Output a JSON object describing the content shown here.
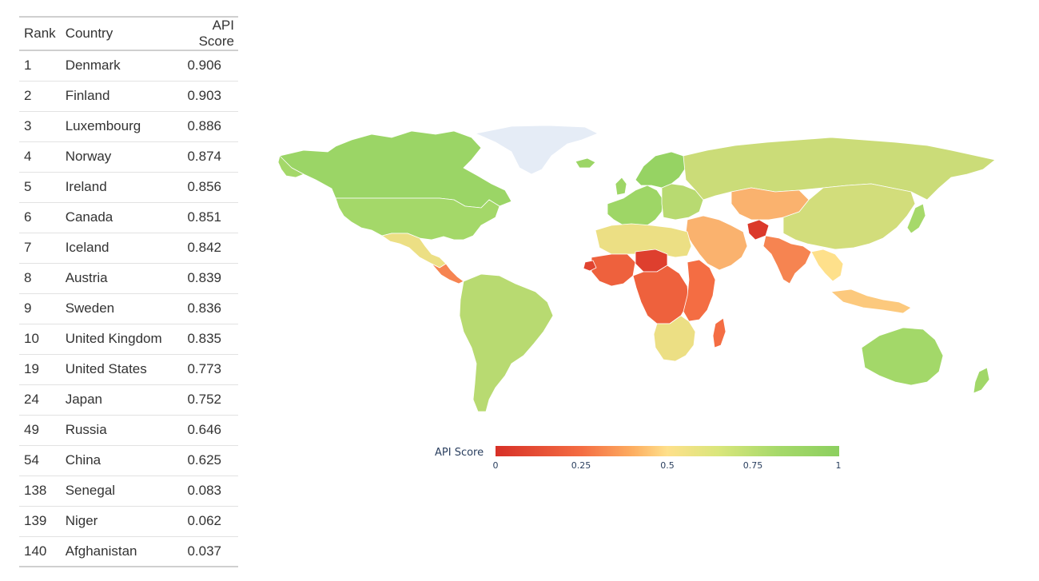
{
  "table": {
    "headers": {
      "rank": "Rank",
      "country": "Country",
      "score": "API Score"
    },
    "rows": [
      {
        "rank": "1",
        "country": "Denmark",
        "score": "0.906"
      },
      {
        "rank": "2",
        "country": "Finland",
        "score": "0.903"
      },
      {
        "rank": "3",
        "country": "Luxembourg",
        "score": "0.886"
      },
      {
        "rank": "4",
        "country": "Norway",
        "score": "0.874"
      },
      {
        "rank": "5",
        "country": "Ireland",
        "score": "0.856"
      },
      {
        "rank": "6",
        "country": "Canada",
        "score": "0.851"
      },
      {
        "rank": "7",
        "country": "Iceland",
        "score": "0.842"
      },
      {
        "rank": "8",
        "country": "Austria",
        "score": "0.839"
      },
      {
        "rank": "9",
        "country": "Sweden",
        "score": "0.836"
      },
      {
        "rank": "10",
        "country": "United Kingdom",
        "score": "0.835"
      },
      {
        "rank": "19",
        "country": "United States",
        "score": "0.773"
      },
      {
        "rank": "24",
        "country": "Japan",
        "score": "0.752"
      },
      {
        "rank": "49",
        "country": "Russia",
        "score": "0.646"
      },
      {
        "rank": "54",
        "country": "China",
        "score": "0.625"
      },
      {
        "rank": "138",
        "country": "Senegal",
        "score": "0.083"
      },
      {
        "rank": "139",
        "country": "Niger",
        "score": "0.062"
      },
      {
        "rank": "140",
        "country": "Afghanistan",
        "score": "0.037"
      }
    ]
  },
  "colorbar": {
    "title": "API Score",
    "ticks": [
      "0",
      "0.25",
      "0.5",
      "0.75",
      "1"
    ],
    "colors": {
      "no_data": "#e5ecf6",
      "scale_0": "#d73027",
      "scale_025": "#f46d43",
      "scale_05": "#fee08b",
      "scale_075": "#a6d96a",
      "scale_1": "#8ccf5f"
    }
  },
  "map": {
    "type": "choropleth",
    "projection": "natural-earth",
    "regions": [
      {
        "id": "canada",
        "value": 0.851
      },
      {
        "id": "usa",
        "value": 0.773
      },
      {
        "id": "mexico",
        "value": 0.55
      },
      {
        "id": "central-america",
        "value": 0.3
      },
      {
        "id": "greenland",
        "value": null
      },
      {
        "id": "iceland",
        "value": 0.842
      },
      {
        "id": "south-america",
        "value": 0.7
      },
      {
        "id": "western-europe",
        "value": 0.83
      },
      {
        "id": "scandinavia",
        "value": 0.9
      },
      {
        "id": "eastern-europe",
        "value": 0.7
      },
      {
        "id": "russia",
        "value": 0.646
      },
      {
        "id": "middle-east",
        "value": 0.4
      },
      {
        "id": "afghanistan",
        "value": 0.037
      },
      {
        "id": "india",
        "value": 0.3
      },
      {
        "id": "china",
        "value": 0.625
      },
      {
        "id": "japan",
        "value": 0.752
      },
      {
        "id": "southeast-asia",
        "value": 0.5
      },
      {
        "id": "indonesia",
        "value": 0.45
      },
      {
        "id": "north-africa",
        "value": 0.55
      },
      {
        "id": "west-africa",
        "value": 0.2
      },
      {
        "id": "niger",
        "value": 0.062
      },
      {
        "id": "senegal",
        "value": 0.083
      },
      {
        "id": "central-africa",
        "value": 0.2
      },
      {
        "id": "east-africa",
        "value": 0.25
      },
      {
        "id": "southern-africa",
        "value": 0.55
      },
      {
        "id": "madagascar",
        "value": 0.25
      },
      {
        "id": "australia",
        "value": 0.78
      },
      {
        "id": "new-zealand",
        "value": 0.8
      }
    ]
  }
}
